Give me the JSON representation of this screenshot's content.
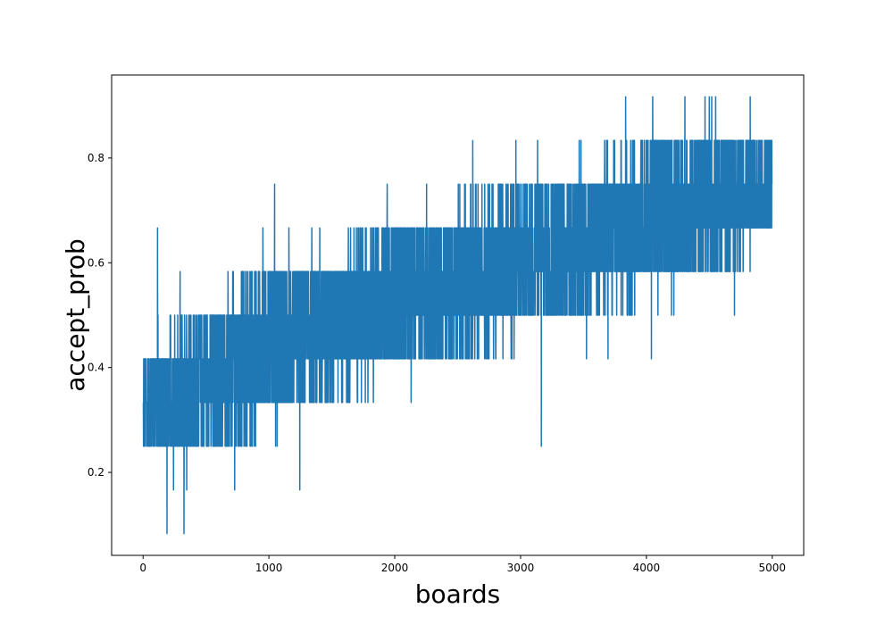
{
  "chart_data": {
    "type": "line",
    "title": "",
    "xlabel": "boards",
    "ylabel": "accept_prob",
    "xlim": [
      -250,
      5250
    ],
    "ylim": [
      0.0417,
      0.9583
    ],
    "xticks": [
      0,
      1000,
      2000,
      3000,
      4000,
      5000
    ],
    "xtick_labels": [
      "0",
      "1000",
      "2000",
      "3000",
      "4000",
      "5000"
    ],
    "yticks": [
      0.2,
      0.4,
      0.6,
      0.8
    ],
    "ytick_labels": [
      "0.2",
      "0.4",
      "0.6",
      "0.8"
    ],
    "grid": false,
    "legend": "none",
    "series": [
      {
        "color": "#1f77b4",
        "n_points": 5000,
        "values_per_step": "multiples of 1/12",
        "x_range": [
          0,
          5000
        ],
        "trend": [
          {
            "x": 0,
            "typical_min": 0.25,
            "typical_max": 0.4167,
            "mean": 0.33
          },
          {
            "x": 500,
            "typical_min": 0.25,
            "typical_max": 0.5,
            "mean": 0.38
          },
          {
            "x": 1000,
            "typical_min": 0.3333,
            "typical_max": 0.5833,
            "mean": 0.44
          },
          {
            "x": 1500,
            "typical_min": 0.3333,
            "typical_max": 0.5833,
            "mean": 0.48
          },
          {
            "x": 2000,
            "typical_min": 0.4167,
            "typical_max": 0.6667,
            "mean": 0.53
          },
          {
            "x": 2500,
            "typical_min": 0.4167,
            "typical_max": 0.6667,
            "mean": 0.57
          },
          {
            "x": 3000,
            "typical_min": 0.5,
            "typical_max": 0.75,
            "mean": 0.61
          },
          {
            "x": 3500,
            "typical_min": 0.5,
            "typical_max": 0.75,
            "mean": 0.64
          },
          {
            "x": 4000,
            "typical_min": 0.5833,
            "typical_max": 0.8333,
            "mean": 0.69
          },
          {
            "x": 4500,
            "typical_min": 0.5833,
            "typical_max": 0.8333,
            "mean": 0.72
          },
          {
            "x": 5000,
            "typical_min": 0.6667,
            "typical_max": 0.8333,
            "mean": 0.74
          }
        ],
        "notable_points": [
          {
            "x": 190,
            "y": 0.0833
          },
          {
            "x": 325,
            "y": 0.0833
          },
          {
            "x": 115,
            "y": 0.6667
          },
          {
            "x": 1045,
            "y": 0.75
          },
          {
            "x": 1245,
            "y": 0.1667
          },
          {
            "x": 2620,
            "y": 0.8333
          },
          {
            "x": 3165,
            "y": 0.25
          },
          {
            "x": 3835,
            "y": 0.9167
          },
          {
            "x": 4050,
            "y": 0.9167
          },
          {
            "x": 4825,
            "y": 0.9167
          },
          {
            "x": 4040,
            "y": 0.4167
          },
          {
            "x": 4700,
            "y": 0.5
          }
        ]
      }
    ]
  }
}
